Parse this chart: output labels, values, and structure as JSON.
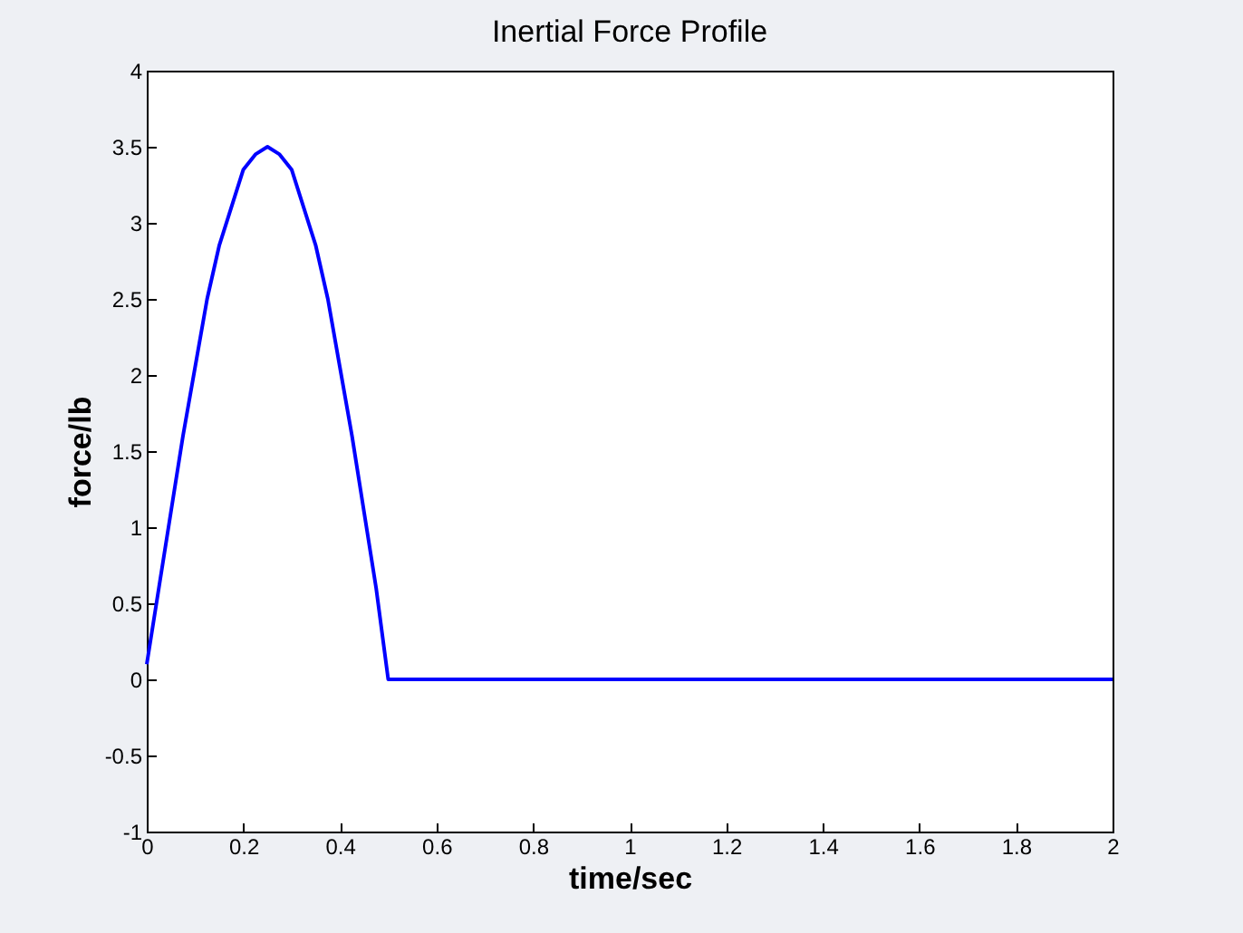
{
  "chart_data": {
    "type": "line",
    "title": "Inertial Force Profile",
    "xlabel": "time/sec",
    "ylabel": "force/lb",
    "series": [
      {
        "color": "#0000ff",
        "x": [
          0,
          0.025,
          0.05,
          0.075,
          0.1,
          0.125,
          0.15,
          0.175,
          0.2,
          0.225,
          0.25,
          0.275,
          0.3,
          0.325,
          0.35,
          0.375,
          0.4,
          0.425,
          0.45,
          0.475,
          0.5,
          0.6,
          0.8,
          1,
          1.2,
          1.4,
          1.6,
          1.8,
          2
        ],
        "values": [
          0.1,
          0.6,
          1.1,
          1.6,
          2.05,
          2.5,
          2.85,
          3.1,
          3.35,
          3.45,
          3.5,
          3.45,
          3.35,
          3.1,
          2.85,
          2.5,
          2.05,
          1.6,
          1.1,
          0.6,
          0,
          0,
          0,
          0,
          0,
          0,
          0,
          0,
          0
        ]
      }
    ],
    "xlim": [
      0,
      2
    ],
    "xticks": [
      0,
      0.2,
      0.4,
      0.6,
      0.8,
      1,
      1.2,
      1.4,
      1.6,
      1.8,
      2
    ],
    "ylim": [
      -1,
      4
    ],
    "yticks": [
      -1,
      -0.5,
      0,
      0.5,
      1,
      1.5,
      2,
      2.5,
      3,
      3.5,
      4
    ],
    "grid": false,
    "marker": "none",
    "line_style": "solid"
  }
}
